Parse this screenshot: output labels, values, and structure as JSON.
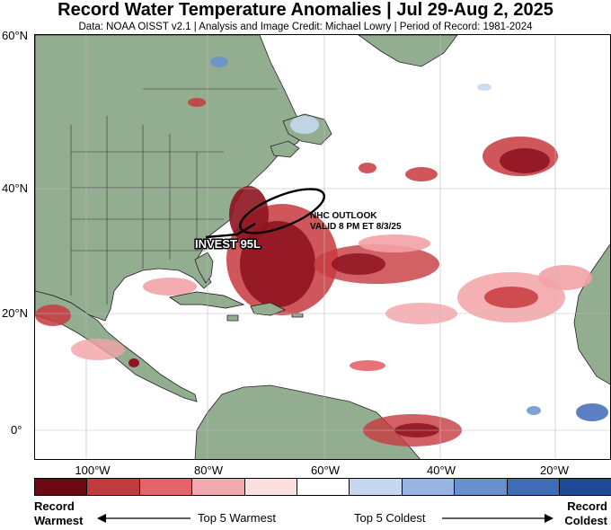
{
  "header": {
    "title": "Record Water Temperature Anomalies | Jul 29-Aug 2, 2025",
    "subtitle": "Data: NOAA OISST v2.1 | Analysis and Image Credit: Michael Lowry | Period of Record: 1981-2024"
  },
  "axes": {
    "lat_labels": [
      "60°N",
      "40°N",
      "20°N",
      "0°"
    ],
    "lon_labels": [
      "100°W",
      "80°W",
      "60°W",
      "40°W",
      "20°W"
    ]
  },
  "annotations": {
    "outlook_line1": "NHC OUTLOOK",
    "outlook_line2": "VALID 8 PM ET 8/3/25",
    "invest": "INVEST 95L"
  },
  "colorbar": {
    "colors": [
      "#6b0a12",
      "#c03a3e",
      "#e5636a",
      "#f4a9ae",
      "#fbdede",
      "#ffffff",
      "#c6d8ef",
      "#97b5e0",
      "#6890cf",
      "#3f6bb8",
      "#1f4a9a"
    ]
  },
  "legend": {
    "left_line1": "Record",
    "left_line2": "Warmest",
    "mid_warm": "Top 5 Warmest",
    "mid_cold": "Top 5 Coldest",
    "right_line1": "Record",
    "right_line2": "Coldest"
  },
  "colors": {
    "land": "#93ad90",
    "dark_red": "#8e1420",
    "red": "#c7393e",
    "pink": "#f2a2a6",
    "blue": "#7fa4d8"
  }
}
